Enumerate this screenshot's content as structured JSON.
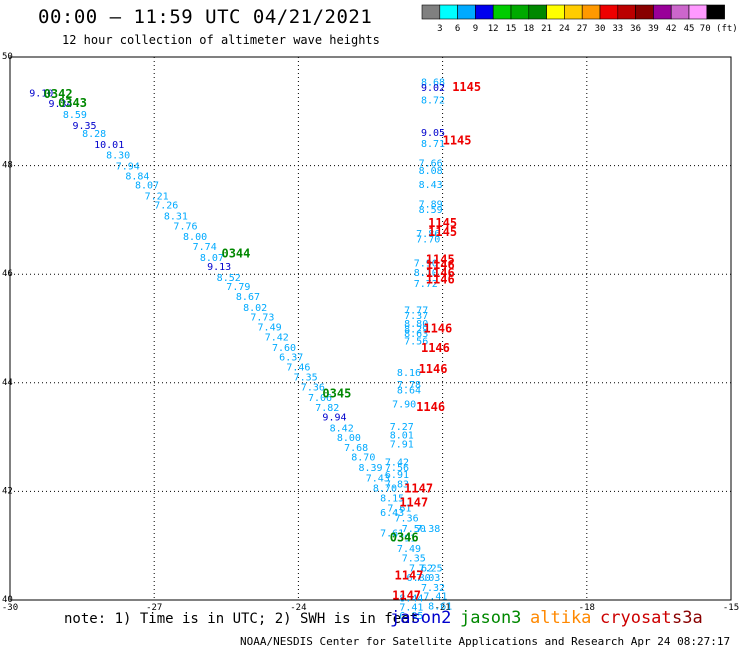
{
  "header": {
    "title": "00:00 – 11:59 UTC 04/21/2021",
    "subtitle": "12 hour collection of altimeter wave heights"
  },
  "colorbar": {
    "colors": [
      "#808080",
      "#00ffff",
      "#00aaff",
      "#0000ee",
      "#00cc00",
      "#00aa00",
      "#008800",
      "#ffff00",
      "#ffcc00",
      "#ff9900",
      "#ee0000",
      "#bb0000",
      "#880000",
      "#990099",
      "#cc66cc",
      "#ff99ff",
      "#000000"
    ],
    "labels": [
      "3",
      "6",
      "9",
      "12",
      "15",
      "18",
      "21",
      "24",
      "27",
      "30",
      "33",
      "36",
      "39",
      "42",
      "45",
      "70 (ft)"
    ]
  },
  "footer": {
    "note": "note: 1) Time is in UTC; 2) SWH is in feet",
    "credit": "NOAA/NESDIS Center for Satellite Applications and Research    Apr 24 08:27:17 UTC 2021",
    "satellites": [
      {
        "name": "jason2",
        "color": "#0000cc"
      },
      {
        "name": "jason3",
        "color": "#008800"
      },
      {
        "name": "altika",
        "color": "#ff8800"
      },
      {
        "name": "cryosat",
        "color": "#cc0000"
      },
      {
        "name": "s3a",
        "color": "#880000"
      }
    ]
  },
  "chart_data": {
    "type": "scatter",
    "title": "",
    "xlabel": "",
    "ylabel": "",
    "xlim": [
      -30,
      -15
    ],
    "ylim": [
      40,
      50
    ],
    "grid": true,
    "xticks": [
      -30,
      -27,
      -24,
      -21,
      -18,
      -15
    ],
    "xtick_labels": [
      "-30",
      "-27",
      "-24",
      "-21",
      "-18",
      "-15"
    ],
    "yticks": [
      40,
      42,
      44,
      46,
      48,
      50
    ],
    "ytick_labels": [
      "40",
      "42",
      "44",
      "46",
      "48",
      "50"
    ],
    "labels": [
      {
        "x": -29.6,
        "y": 49.35,
        "text": "9.10",
        "color": "#0000cc"
      },
      {
        "x": -29.2,
        "y": 49.15,
        "text": "9.34",
        "color": "#0000cc"
      },
      {
        "x": -28.9,
        "y": 48.95,
        "text": "8.59",
        "color": "#00aaff"
      },
      {
        "x": -28.7,
        "y": 48.75,
        "text": "9.35",
        "color": "#0000cc"
      },
      {
        "x": -28.5,
        "y": 48.6,
        "text": "8.28",
        "color": "#00aaff"
      },
      {
        "x": -28.25,
        "y": 48.4,
        "text": "10.01",
        "color": "#0000cc"
      },
      {
        "x": -28.0,
        "y": 48.2,
        "text": "8.30",
        "color": "#00aaff"
      },
      {
        "x": -27.8,
        "y": 48.0,
        "text": "7.94",
        "color": "#00aaff"
      },
      {
        "x": -27.6,
        "y": 47.82,
        "text": "8.84",
        "color": "#00aaff"
      },
      {
        "x": -27.4,
        "y": 47.65,
        "text": "8.07",
        "color": "#00aaff"
      },
      {
        "x": -27.2,
        "y": 47.45,
        "text": "7.21",
        "color": "#00aaff"
      },
      {
        "x": -27.0,
        "y": 47.28,
        "text": "7.26",
        "color": "#00aaff"
      },
      {
        "x": -26.8,
        "y": 47.08,
        "text": "8.31",
        "color": "#00aaff"
      },
      {
        "x": -26.6,
        "y": 46.9,
        "text": "7.76",
        "color": "#00aaff"
      },
      {
        "x": -26.4,
        "y": 46.7,
        "text": "8.00",
        "color": "#00aaff"
      },
      {
        "x": -26.2,
        "y": 46.52,
        "text": "7.74",
        "color": "#00aaff"
      },
      {
        "x": -26.05,
        "y": 46.32,
        "text": "8.07",
        "color": "#00aaff"
      },
      {
        "x": -25.9,
        "y": 46.15,
        "text": "9.13",
        "color": "#0000cc"
      },
      {
        "x": -25.7,
        "y": 45.95,
        "text": "8.52",
        "color": "#00aaff"
      },
      {
        "x": -25.5,
        "y": 45.78,
        "text": "7.79",
        "color": "#00aaff"
      },
      {
        "x": -25.3,
        "y": 45.6,
        "text": "8.67",
        "color": "#00aaff"
      },
      {
        "x": -25.15,
        "y": 45.4,
        "text": "8.02",
        "color": "#00aaff"
      },
      {
        "x": -25.0,
        "y": 45.22,
        "text": "7.73",
        "color": "#00aaff"
      },
      {
        "x": -24.85,
        "y": 45.04,
        "text": "7.49",
        "color": "#00aaff"
      },
      {
        "x": -24.7,
        "y": 44.85,
        "text": "7.42",
        "color": "#00aaff"
      },
      {
        "x": -24.55,
        "y": 44.66,
        "text": "7.60",
        "color": "#00aaff"
      },
      {
        "x": -24.4,
        "y": 44.48,
        "text": "6.37",
        "color": "#00aaff"
      },
      {
        "x": -24.25,
        "y": 44.3,
        "text": "7.46",
        "color": "#00aaff"
      },
      {
        "x": -24.1,
        "y": 44.12,
        "text": "7.35",
        "color": "#00aaff"
      },
      {
        "x": -23.95,
        "y": 43.93,
        "text": "7.36",
        "color": "#00aaff"
      },
      {
        "x": -23.8,
        "y": 43.74,
        "text": "7.06",
        "color": "#00aaff"
      },
      {
        "x": -23.65,
        "y": 43.55,
        "text": "7.82",
        "color": "#00aaff"
      },
      {
        "x": -23.5,
        "y": 43.38,
        "text": "9.94",
        "color": "#0000cc"
      },
      {
        "x": -23.35,
        "y": 43.18,
        "text": "8.42",
        "color": "#00aaff"
      },
      {
        "x": -23.2,
        "y": 43.0,
        "text": "8.00",
        "color": "#00aaff"
      },
      {
        "x": -23.05,
        "y": 42.82,
        "text": "7.68",
        "color": "#00aaff"
      },
      {
        "x": -22.9,
        "y": 42.64,
        "text": "8.70",
        "color": "#00aaff"
      },
      {
        "x": -22.75,
        "y": 42.45,
        "text": "8.39",
        "color": "#00aaff"
      },
      {
        "x": -22.6,
        "y": 42.26,
        "text": "7.43",
        "color": "#00aaff"
      },
      {
        "x": -22.45,
        "y": 42.07,
        "text": "8.70",
        "color": "#00aaff"
      },
      {
        "x": -22.3,
        "y": 41.89,
        "text": "8.15",
        "color": "#00aaff"
      },
      {
        "x": -22.15,
        "y": 41.7,
        "text": "7.61",
        "color": "#00aaff"
      },
      {
        "x": -22.0,
        "y": 41.52,
        "text": "7.36",
        "color": "#00aaff"
      },
      {
        "x": -21.85,
        "y": 41.33,
        "text": "7.50",
        "color": "#00aaff"
      },
      {
        "x": -21.55,
        "y": 41.33,
        "text": "7.38",
        "color": "#00aaff"
      },
      {
        "x": -22.05,
        "y": 41.15,
        "text": "7.91",
        "color": "#00aaff"
      },
      {
        "x": -21.95,
        "y": 40.96,
        "text": "7.49",
        "color": "#00aaff"
      },
      {
        "x": -21.85,
        "y": 40.78,
        "text": "7.35",
        "color": "#00aaff"
      },
      {
        "x": -21.7,
        "y": 40.6,
        "text": "7.62",
        "color": "#00aaff"
      },
      {
        "x": -21.5,
        "y": 40.6,
        "text": "7.25",
        "color": "#00aaff"
      },
      {
        "x": -21.75,
        "y": 40.42,
        "text": "6.80",
        "color": "#00aaff"
      },
      {
        "x": -21.55,
        "y": 40.42,
        "text": "7.03",
        "color": "#00aaff"
      },
      {
        "x": -21.45,
        "y": 40.24,
        "text": "7.32",
        "color": "#00aaff"
      },
      {
        "x": -21.9,
        "y": 40.05,
        "text": "8.44",
        "color": "#00aaff"
      },
      {
        "x": -21.4,
        "y": 40.08,
        "text": "7.41",
        "color": "#00aaff"
      },
      {
        "x": -21.9,
        "y": 39.88,
        "text": "7.41",
        "color": "#00aaff"
      },
      {
        "x": -21.3,
        "y": 39.9,
        "text": "8.61",
        "color": "#00aaff"
      },
      {
        "x": -21.9,
        "y": 39.72,
        "text": "6.95",
        "color": "#00aaff"
      },
      {
        "x": -21.45,
        "y": 49.55,
        "text": "8.68",
        "color": "#00aaff"
      },
      {
        "x": -21.45,
        "y": 49.45,
        "text": "9.02",
        "color": "#0000cc"
      },
      {
        "x": -21.45,
        "y": 49.22,
        "text": "8.72",
        "color": "#00aaff"
      },
      {
        "x": -21.45,
        "y": 48.62,
        "text": "9.05",
        "color": "#0000cc"
      },
      {
        "x": -21.45,
        "y": 48.42,
        "text": "8.71",
        "color": "#00aaff"
      },
      {
        "x": -21.5,
        "y": 48.06,
        "text": "7.66",
        "color": "#00aaff"
      },
      {
        "x": -21.5,
        "y": 47.92,
        "text": "8.08",
        "color": "#00aaff"
      },
      {
        "x": -21.5,
        "y": 47.66,
        "text": "8.43",
        "color": "#00aaff"
      },
      {
        "x": -21.5,
        "y": 47.3,
        "text": "7.89",
        "color": "#00aaff"
      },
      {
        "x": -21.5,
        "y": 47.2,
        "text": "8.59",
        "color": "#00aaff"
      },
      {
        "x": -21.55,
        "y": 46.76,
        "text": "7.86",
        "color": "#00aaff"
      },
      {
        "x": -21.55,
        "y": 46.66,
        "text": "7.70",
        "color": "#00aaff"
      },
      {
        "x": -21.6,
        "y": 46.22,
        "text": "7.90",
        "color": "#00aaff"
      },
      {
        "x": -21.6,
        "y": 46.04,
        "text": "8.10",
        "color": "#00aaff"
      },
      {
        "x": -21.6,
        "y": 45.84,
        "text": "7.72",
        "color": "#00aaff"
      },
      {
        "x": -21.8,
        "y": 45.35,
        "text": "7.77",
        "color": "#00aaff"
      },
      {
        "x": -21.8,
        "y": 45.25,
        "text": "7.37",
        "color": "#00aaff"
      },
      {
        "x": -21.8,
        "y": 45.1,
        "text": "8.80",
        "color": "#00aaff"
      },
      {
        "x": -21.8,
        "y": 45.0,
        "text": "8.29",
        "color": "#00aaff"
      },
      {
        "x": -21.8,
        "y": 44.92,
        "text": "8.63",
        "color": "#00aaff"
      },
      {
        "x": -21.8,
        "y": 44.78,
        "text": "7.56",
        "color": "#00aaff"
      },
      {
        "x": -21.95,
        "y": 44.2,
        "text": "8.16",
        "color": "#00aaff"
      },
      {
        "x": -21.95,
        "y": 43.98,
        "text": "7.78",
        "color": "#00aaff"
      },
      {
        "x": -21.95,
        "y": 43.88,
        "text": "8.64",
        "color": "#00aaff"
      },
      {
        "x": -22.05,
        "y": 43.62,
        "text": "7.90",
        "color": "#00aaff"
      },
      {
        "x": -22.1,
        "y": 43.2,
        "text": "7.27",
        "color": "#00aaff"
      },
      {
        "x": -22.1,
        "y": 43.05,
        "text": "8.01",
        "color": "#00aaff"
      },
      {
        "x": -22.1,
        "y": 42.88,
        "text": "7.91",
        "color": "#00aaff"
      },
      {
        "x": -22.2,
        "y": 42.55,
        "text": "7.42",
        "color": "#00aaff"
      },
      {
        "x": -22.2,
        "y": 42.45,
        "text": "7.56",
        "color": "#00aaff"
      },
      {
        "x": -22.2,
        "y": 42.32,
        "text": "6.91",
        "color": "#00aaff"
      },
      {
        "x": -22.2,
        "y": 42.15,
        "text": "7.83",
        "color": "#00aaff"
      },
      {
        "x": -22.3,
        "y": 41.62,
        "text": "6.43",
        "color": "#00aaff"
      },
      {
        "x": -22.3,
        "y": 41.24,
        "text": "7.61",
        "color": "#00aaff"
      },
      {
        "x": -20.8,
        "y": 49.45,
        "text": "1145",
        "color": "#ee0000",
        "marker": true
      },
      {
        "x": -21.0,
        "y": 48.46,
        "text": "1145",
        "color": "#ee0000",
        "marker": true
      },
      {
        "x": -21.3,
        "y": 46.94,
        "text": "1145",
        "color": "#ee0000",
        "marker": true
      },
      {
        "x": -21.3,
        "y": 46.78,
        "text": "1145",
        "color": "#ee0000",
        "marker": true
      },
      {
        "x": -21.35,
        "y": 46.27,
        "text": "1145",
        "color": "#ee0000",
        "marker": true
      },
      {
        "x": -21.35,
        "y": 46.17,
        "text": "1146",
        "color": "#ee0000",
        "marker": true
      },
      {
        "x": -21.35,
        "y": 46.02,
        "text": "1146",
        "color": "#ee0000",
        "marker": true
      },
      {
        "x": -21.35,
        "y": 45.9,
        "text": "1146",
        "color": "#ee0000",
        "marker": true
      },
      {
        "x": -21.4,
        "y": 45.0,
        "text": "1146",
        "color": "#ee0000",
        "marker": true
      },
      {
        "x": -21.45,
        "y": 44.64,
        "text": "1146",
        "color": "#ee0000",
        "marker": true
      },
      {
        "x": -21.5,
        "y": 44.25,
        "text": "1146",
        "color": "#ee0000",
        "marker": true
      },
      {
        "x": -21.55,
        "y": 43.55,
        "text": "1146",
        "color": "#ee0000",
        "marker": true
      },
      {
        "x": -21.8,
        "y": 42.05,
        "text": "1147",
        "color": "#ee0000",
        "marker": true
      },
      {
        "x": -21.9,
        "y": 41.8,
        "text": "1147",
        "color": "#ee0000",
        "marker": true
      },
      {
        "x": -22.0,
        "y": 40.45,
        "text": "1147",
        "color": "#ee0000",
        "marker": true
      },
      {
        "x": -22.05,
        "y": 40.08,
        "text": "1147",
        "color": "#ee0000",
        "marker": true
      },
      {
        "x": -29.3,
        "y": 49.32,
        "text": "0342",
        "color": "#008800",
        "marker": true
      },
      {
        "x": -29.0,
        "y": 49.15,
        "text": "0343",
        "color": "#008800",
        "marker": true
      },
      {
        "x": -25.6,
        "y": 46.38,
        "text": "0344",
        "color": "#008800",
        "marker": true
      },
      {
        "x": -23.5,
        "y": 43.8,
        "text": "0345",
        "color": "#008800",
        "marker": true
      },
      {
        "x": -22.1,
        "y": 41.15,
        "text": "0346",
        "color": "#008800",
        "marker": true
      }
    ]
  }
}
